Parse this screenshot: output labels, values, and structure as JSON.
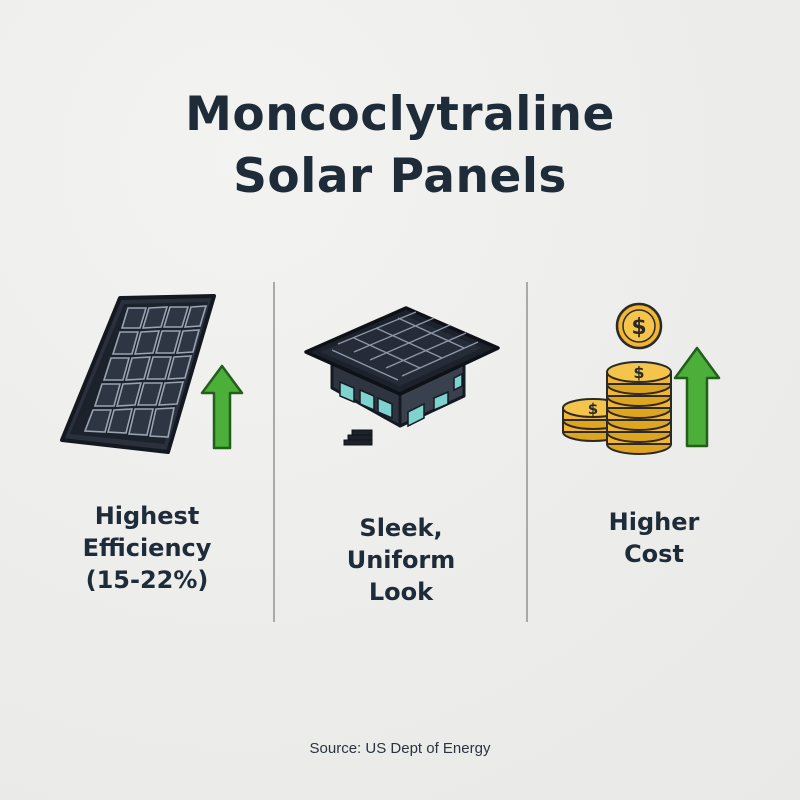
{
  "title": {
    "line1": "Moncoclytraline",
    "line2": "Solar Panels"
  },
  "features": [
    {
      "icon": "solar-panel-icon",
      "label_lines": [
        "Highest",
        "Efficiency",
        "(15-22%)"
      ]
    },
    {
      "icon": "house-with-solar-roof-icon",
      "label_lines": [
        "Sleek,",
        "Uniform",
        "Look"
      ]
    },
    {
      "icon": "coins-dollar-icon",
      "label_lines": [
        "Higher",
        "Cost"
      ]
    }
  ],
  "source": "Source: US Dept of Energy",
  "colors": {
    "text": "#1e2b38",
    "arrow_green": "#4caf3a",
    "coin_gold": "#f2b630",
    "panel_dark": "#1f2530",
    "background": "#efefed"
  }
}
